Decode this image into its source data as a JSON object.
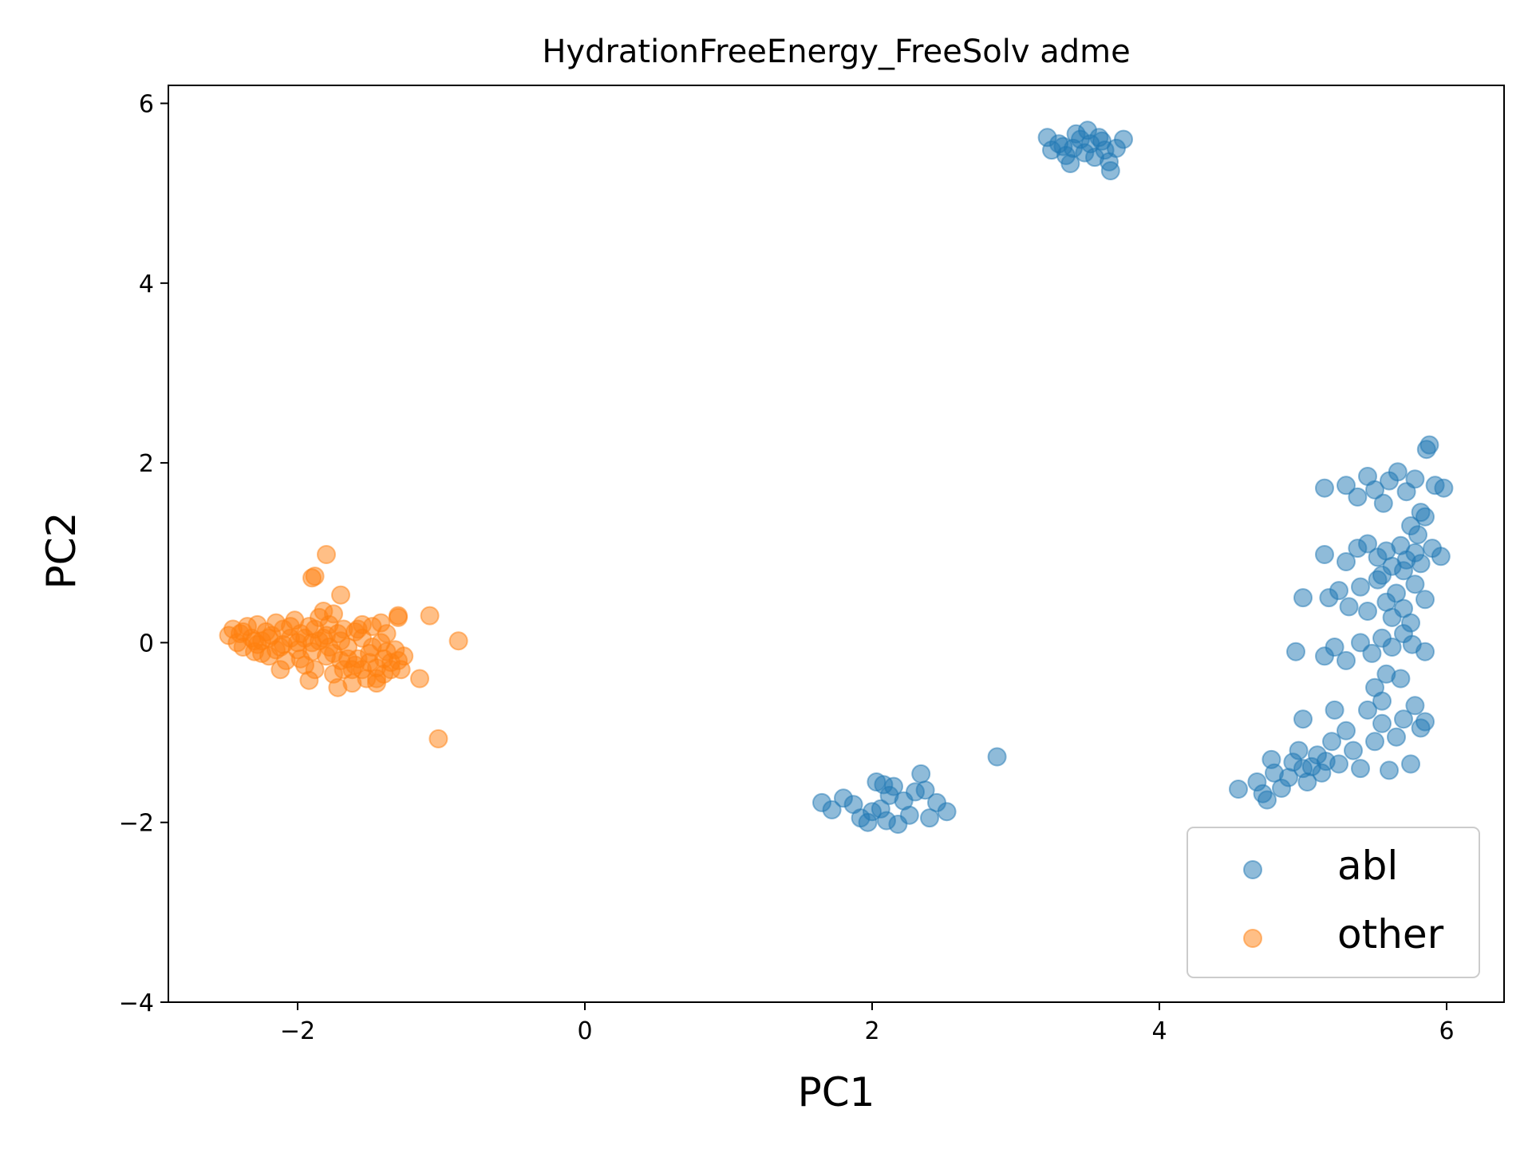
{
  "chart_data": {
    "type": "scatter",
    "title": "HydrationFreeEnergy_FreeSolv adme",
    "xlabel": "PC1",
    "ylabel": "PC2",
    "xlim": [
      -2.9,
      6.4
    ],
    "ylim": [
      -4.0,
      6.2
    ],
    "xticks": [
      -2,
      0,
      2,
      4,
      6
    ],
    "yticks": [
      -4,
      -2,
      0,
      2,
      4,
      6
    ],
    "xtick_labels": [
      "−2",
      "0",
      "2",
      "4",
      "6"
    ],
    "ytick_labels": [
      "−4",
      "−2",
      "0",
      "2",
      "4",
      "6"
    ],
    "grid": false,
    "legend_position": "lower-right",
    "series": [
      {
        "name": "abl",
        "color": "#1f77b4",
        "points": [
          [
            3.22,
            5.62
          ],
          [
            3.25,
            5.48
          ],
          [
            3.3,
            5.55
          ],
          [
            3.35,
            5.42
          ],
          [
            3.38,
            5.33
          ],
          [
            3.4,
            5.5
          ],
          [
            3.45,
            5.6
          ],
          [
            3.48,
            5.45
          ],
          [
            3.5,
            5.7
          ],
          [
            3.52,
            5.55
          ],
          [
            3.55,
            5.4
          ],
          [
            3.58,
            5.62
          ],
          [
            3.62,
            5.48
          ],
          [
            3.65,
            5.35
          ],
          [
            3.66,
            5.25
          ],
          [
            3.7,
            5.5
          ],
          [
            3.75,
            5.6
          ],
          [
            3.42,
            5.66
          ],
          [
            3.6,
            5.58
          ],
          [
            3.33,
            5.52
          ],
          [
            1.65,
            -1.78
          ],
          [
            1.72,
            -1.86
          ],
          [
            1.8,
            -1.73
          ],
          [
            1.87,
            -1.8
          ],
          [
            1.92,
            -1.95
          ],
          [
            1.97,
            -2.0
          ],
          [
            2.0,
            -1.88
          ],
          [
            2.03,
            -1.55
          ],
          [
            2.06,
            -1.85
          ],
          [
            2.1,
            -1.98
          ],
          [
            2.12,
            -1.7
          ],
          [
            2.15,
            -1.6
          ],
          [
            2.18,
            -2.02
          ],
          [
            2.22,
            -1.76
          ],
          [
            2.26,
            -1.92
          ],
          [
            2.3,
            -1.66
          ],
          [
            2.34,
            -1.46
          ],
          [
            2.37,
            -1.64
          ],
          [
            2.4,
            -1.95
          ],
          [
            2.45,
            -1.78
          ],
          [
            2.52,
            -1.88
          ],
          [
            2.87,
            -1.27
          ],
          [
            2.08,
            -1.58
          ],
          [
            4.55,
            -1.63
          ],
          [
            4.68,
            -1.55
          ],
          [
            4.72,
            -1.68
          ],
          [
            4.75,
            -1.75
          ],
          [
            4.8,
            -1.45
          ],
          [
            4.78,
            -1.3
          ],
          [
            4.85,
            -1.62
          ],
          [
            4.9,
            -1.5
          ],
          [
            4.93,
            -1.33
          ],
          [
            4.97,
            -1.2
          ],
          [
            5.0,
            -1.4
          ],
          [
            5.03,
            -1.55
          ],
          [
            5.06,
            -1.38
          ],
          [
            5.1,
            -1.25
          ],
          [
            5.13,
            -1.45
          ],
          [
            5.16,
            -1.32
          ],
          [
            5.2,
            -1.1
          ],
          [
            5.25,
            -1.35
          ],
          [
            5.3,
            -0.98
          ],
          [
            5.35,
            -1.2
          ],
          [
            5.4,
            -1.4
          ],
          [
            5.45,
            -0.75
          ],
          [
            5.5,
            -1.1
          ],
          [
            5.55,
            -0.9
          ],
          [
            5.6,
            -1.42
          ],
          [
            5.65,
            -1.05
          ],
          [
            5.7,
            -0.85
          ],
          [
            5.75,
            -1.35
          ],
          [
            5.78,
            -0.7
          ],
          [
            5.82,
            -0.95
          ],
          [
            5.85,
            -0.88
          ],
          [
            5.0,
            -0.85
          ],
          [
            5.22,
            -0.75
          ],
          [
            5.5,
            -0.5
          ],
          [
            5.55,
            -0.65
          ],
          [
            4.95,
            -0.1
          ],
          [
            5.15,
            -0.15
          ],
          [
            5.22,
            -0.05
          ],
          [
            5.3,
            -0.2
          ],
          [
            5.4,
            0.0
          ],
          [
            5.48,
            -0.12
          ],
          [
            5.55,
            0.05
          ],
          [
            5.62,
            -0.05
          ],
          [
            5.7,
            0.1
          ],
          [
            5.76,
            -0.02
          ],
          [
            5.85,
            -0.1
          ],
          [
            5.58,
            -0.35
          ],
          [
            5.68,
            -0.4
          ],
          [
            5.0,
            0.5
          ],
          [
            5.18,
            0.5
          ],
          [
            5.25,
            0.58
          ],
          [
            5.32,
            0.4
          ],
          [
            5.4,
            0.62
          ],
          [
            5.45,
            0.35
          ],
          [
            5.52,
            0.7
          ],
          [
            5.58,
            0.45
          ],
          [
            5.65,
            0.55
          ],
          [
            5.7,
            0.38
          ],
          [
            5.78,
            0.65
          ],
          [
            5.85,
            0.48
          ],
          [
            5.62,
            0.28
          ],
          [
            5.75,
            0.22
          ],
          [
            5.15,
            0.98
          ],
          [
            5.3,
            0.9
          ],
          [
            5.38,
            1.05
          ],
          [
            5.45,
            1.1
          ],
          [
            5.52,
            0.95
          ],
          [
            5.58,
            1.02
          ],
          [
            5.62,
            0.85
          ],
          [
            5.68,
            1.08
          ],
          [
            5.72,
            0.92
          ],
          [
            5.78,
            1.0
          ],
          [
            5.82,
            0.88
          ],
          [
            5.9,
            1.05
          ],
          [
            5.96,
            0.96
          ],
          [
            5.55,
            0.75
          ],
          [
            5.7,
            0.8
          ],
          [
            5.15,
            1.72
          ],
          [
            5.3,
            1.75
          ],
          [
            5.38,
            1.62
          ],
          [
            5.45,
            1.85
          ],
          [
            5.5,
            1.7
          ],
          [
            5.56,
            1.55
          ],
          [
            5.6,
            1.8
          ],
          [
            5.66,
            1.9
          ],
          [
            5.72,
            1.68
          ],
          [
            5.78,
            1.82
          ],
          [
            5.82,
            1.45
          ],
          [
            5.86,
            2.15
          ],
          [
            5.88,
            2.2
          ],
          [
            5.92,
            1.75
          ],
          [
            5.98,
            1.72
          ],
          [
            5.75,
            1.3
          ],
          [
            5.8,
            1.2
          ],
          [
            5.85,
            1.4
          ]
        ]
      },
      {
        "name": "other",
        "color": "#ff7f0e",
        "points": [
          [
            -2.48,
            0.08
          ],
          [
            -2.45,
            0.15
          ],
          [
            -2.42,
            0.0
          ],
          [
            -2.4,
            0.1
          ],
          [
            -2.38,
            -0.05
          ],
          [
            -2.35,
            0.18
          ],
          [
            -2.32,
            0.05
          ],
          [
            -2.3,
            -0.1
          ],
          [
            -2.28,
            0.2
          ],
          [
            -2.25,
            0.02
          ],
          [
            -2.22,
            0.12
          ],
          [
            -2.2,
            -0.15
          ],
          [
            -2.18,
            0.08
          ],
          [
            -2.15,
            0.22
          ],
          [
            -2.12,
            -0.05
          ],
          [
            -2.1,
            0.15
          ],
          [
            -2.08,
            -0.2
          ],
          [
            -2.05,
            0.05
          ],
          [
            -2.02,
            0.25
          ],
          [
            -2.0,
            -0.08
          ],
          [
            -1.98,
            0.1
          ],
          [
            -1.95,
            -0.25
          ],
          [
            -1.92,
            0.18
          ],
          [
            -1.9,
            0.0
          ],
          [
            -1.88,
            -0.3
          ],
          [
            -1.85,
            0.28
          ],
          [
            -1.82,
            0.05
          ],
          [
            -1.8,
            -0.15
          ],
          [
            -1.78,
            0.2
          ],
          [
            -1.75,
            -0.35
          ],
          [
            -1.72,
            0.1
          ],
          [
            -1.7,
            -0.2
          ],
          [
            -1.68,
            0.15
          ],
          [
            -1.65,
            -0.05
          ],
          [
            -1.62,
            -0.3
          ],
          [
            -1.6,
            0.12
          ],
          [
            -1.58,
            -0.18
          ],
          [
            -1.55,
            0.05
          ],
          [
            -1.52,
            -0.4
          ],
          [
            -1.5,
            -0.12
          ],
          [
            -1.48,
            0.18
          ],
          [
            -1.45,
            -0.28
          ],
          [
            -1.42,
            0.0
          ],
          [
            -1.4,
            -0.35
          ],
          [
            -1.38,
            0.1
          ],
          [
            -1.35,
            -0.22
          ],
          [
            -1.32,
            -0.08
          ],
          [
            -1.3,
            0.28
          ],
          [
            -1.28,
            -0.3
          ],
          [
            -1.26,
            -0.15
          ],
          [
            -2.3,
            0.02
          ],
          [
            -2.2,
            0.05
          ],
          [
            -2.1,
            -0.02
          ],
          [
            -2.0,
            0.0
          ],
          [
            -1.95,
            0.05
          ],
          [
            -1.9,
            -0.1
          ],
          [
            -1.85,
            0.02
          ],
          [
            -1.8,
            0.08
          ],
          [
            -1.75,
            -0.12
          ],
          [
            -1.7,
            0.02
          ],
          [
            -1.65,
            -0.18
          ],
          [
            -1.6,
            -0.25
          ],
          [
            -1.55,
            -0.3
          ],
          [
            -1.5,
            -0.22
          ],
          [
            -1.45,
            -0.4
          ],
          [
            -1.4,
            -0.18
          ],
          [
            -1.35,
            -0.3
          ],
          [
            -1.3,
            -0.2
          ],
          [
            -2.25,
            -0.12
          ],
          [
            -2.15,
            -0.08
          ],
          [
            -2.05,
            0.18
          ],
          [
            -1.98,
            -0.18
          ],
          [
            -1.88,
            0.15
          ],
          [
            -1.78,
            -0.05
          ],
          [
            -1.68,
            -0.3
          ],
          [
            -1.58,
            0.15
          ],
          [
            -1.48,
            -0.05
          ],
          [
            -1.38,
            -0.1
          ],
          [
            -2.12,
            -0.3
          ],
          [
            -1.72,
            -0.5
          ],
          [
            -1.62,
            -0.45
          ],
          [
            -1.45,
            -0.45
          ],
          [
            -1.82,
            0.35
          ],
          [
            -1.75,
            0.32
          ],
          [
            -1.55,
            0.2
          ],
          [
            -1.42,
            0.22
          ],
          [
            -2.38,
            0.12
          ],
          [
            -2.28,
            -0.02
          ],
          [
            -1.92,
            -0.42
          ],
          [
            -1.8,
            0.98
          ],
          [
            -1.9,
            0.72
          ],
          [
            -1.88,
            0.74
          ],
          [
            -1.7,
            0.53
          ],
          [
            -1.3,
            0.3
          ],
          [
            -1.08,
            0.3
          ],
          [
            -0.88,
            0.02
          ],
          [
            -1.15,
            -0.4
          ],
          [
            -1.02,
            -1.07
          ]
        ]
      }
    ]
  }
}
